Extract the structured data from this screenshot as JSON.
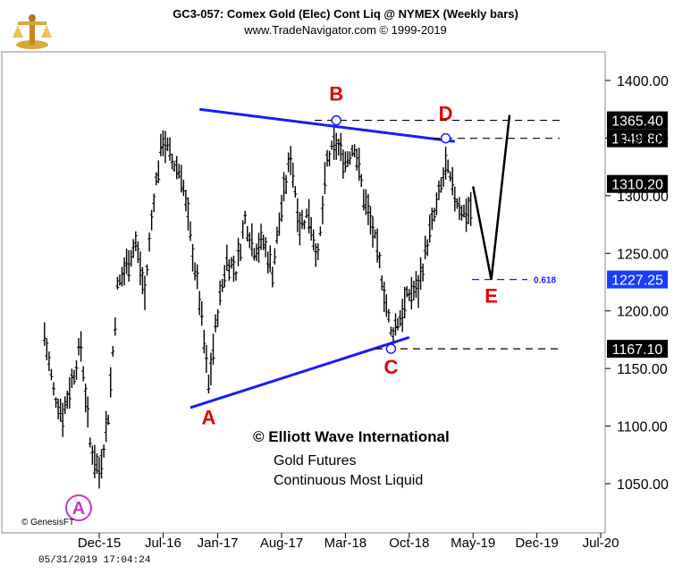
{
  "header": {
    "title": "GC3-057:  Comex Gold (Elec) Cont Liq @ NYMEX  (Weekly bars)",
    "subtitle": "www.TradeNavigator.com © 1999-2019"
  },
  "footer": {
    "timestamp": "05/31/2019 17:04:24",
    "genesis": "© GenesisFT"
  },
  "watermark": {
    "line1": "© Elliott Wave International",
    "line2": "Gold Futures",
    "line3": "Continuous Most Liquid"
  },
  "colors": {
    "bars": "#000000",
    "trendline": "#1a1aff",
    "wave_label": "#e00000",
    "circle_a": "#cc33cc",
    "plot_bg": "#ffffff",
    "panel_border": "#888888"
  },
  "chart_data": {
    "type": "bar",
    "series_kind": "weekly OHLC price bars",
    "title": "GC3-057:  Comex Gold (Elec) Cont Liq @ NYMEX  (Weekly bars)",
    "x_tick_labels": [
      "Dec-15",
      "Jul-16",
      "Jan-17",
      "Aug-17",
      "Mar-18",
      "Oct-18",
      "May-19",
      "Dec-19",
      "Jul-20"
    ],
    "y_tick_labels": [
      "1050.00",
      "1100.00",
      "1150.00",
      "1200.00",
      "1250.00",
      "1300.00",
      "1350.00",
      "1400.00"
    ],
    "ylim": [
      1015,
      1430
    ],
    "grid": false,
    "price_path_approx": [
      [
        "Jun-15",
        1180
      ],
      [
        "Jul-15",
        1130
      ],
      [
        "Aug-15",
        1110
      ],
      [
        "Sep-15",
        1140
      ],
      [
        "Oct-15",
        1170
      ],
      [
        "Nov-15",
        1085
      ],
      [
        "Dec-15",
        1060
      ],
      [
        "Jan-16",
        1110
      ],
      [
        "Feb-16",
        1220
      ],
      [
        "Mar-16",
        1240
      ],
      [
        "Apr-16",
        1260
      ],
      [
        "May-16",
        1215
      ],
      [
        "Jun-16",
        1300
      ],
      [
        "Jul-16",
        1350
      ],
      [
        "Aug-16",
        1330
      ],
      [
        "Sep-16",
        1320
      ],
      [
        "Oct-16",
        1265
      ],
      [
        "Nov-16",
        1210
      ],
      [
        "Dec-16",
        1135
      ],
      [
        "Jan-17",
        1200
      ],
      [
        "Feb-17",
        1245
      ],
      [
        "Mar-17",
        1235
      ],
      [
        "Apr-17",
        1280
      ],
      [
        "May-17",
        1255
      ],
      [
        "Jun-17",
        1260
      ],
      [
        "Jul-17",
        1235
      ],
      [
        "Aug-17",
        1290
      ],
      [
        "Sep-17",
        1335
      ],
      [
        "Oct-17",
        1275
      ],
      [
        "Nov-17",
        1285
      ],
      [
        "Dec-17",
        1245
      ],
      [
        "Jan-18",
        1330
      ],
      [
        "Feb-18",
        1345
      ],
      [
        "Mar-18",
        1330
      ],
      [
        "Apr-18",
        1345
      ],
      [
        "May-18",
        1300
      ],
      [
        "Jun-18",
        1270
      ],
      [
        "Jul-18",
        1230
      ],
      [
        "Aug-18",
        1180
      ],
      [
        "Sep-18",
        1195
      ],
      [
        "Oct-18",
        1215
      ],
      [
        "Nov-18",
        1220
      ],
      [
        "Dec-18",
        1260
      ],
      [
        "Jan-19",
        1290
      ],
      [
        "Feb-19",
        1325
      ],
      [
        "Mar-19",
        1300
      ],
      [
        "Apr-19",
        1285
      ],
      [
        "May-19",
        1290
      ]
    ],
    "price_boxes": [
      {
        "label": "1365.40",
        "value": 1365.4,
        "style": "dark"
      },
      {
        "label": "1349.80",
        "value": 1349.8,
        "style": "dark"
      },
      {
        "label": "1310.20",
        "value": 1310.2,
        "style": "dark"
      },
      {
        "label": "1227.25",
        "value": 1227.25,
        "style": "blue"
      },
      {
        "label": "1167.10",
        "value": 1167.1,
        "style": "dark"
      }
    ],
    "fib_label": "0.618",
    "wave_points": [
      {
        "label": "A",
        "date": "Dec-15",
        "price": 1050,
        "circled": true
      },
      {
        "label": "A",
        "date": "Dec-16",
        "price": 1125,
        "circled": false
      },
      {
        "label": "B",
        "date": "Feb-18",
        "price": 1365.4,
        "circled": false
      },
      {
        "label": "C",
        "date": "Aug-18",
        "price": 1167.1,
        "circled": false
      },
      {
        "label": "D",
        "date": "Feb-19",
        "price": 1349.8,
        "circled": false
      },
      {
        "label": "E",
        "date": "Jul-19",
        "price": 1227.25,
        "circled": false
      }
    ],
    "trendlines": [
      {
        "name": "upper",
        "from": [
          "Nov-16",
          1375
        ],
        "to": [
          "Mar-19",
          1347
        ]
      },
      {
        "name": "lower",
        "from": [
          "Oct-16",
          1116
        ],
        "to": [
          "Oct-18",
          1177
        ]
      }
    ],
    "projection_path": [
      [
        "May-19",
        1308
      ],
      [
        "Jul-19",
        1227.25
      ],
      [
        "Sep-19",
        1370
      ]
    ]
  }
}
